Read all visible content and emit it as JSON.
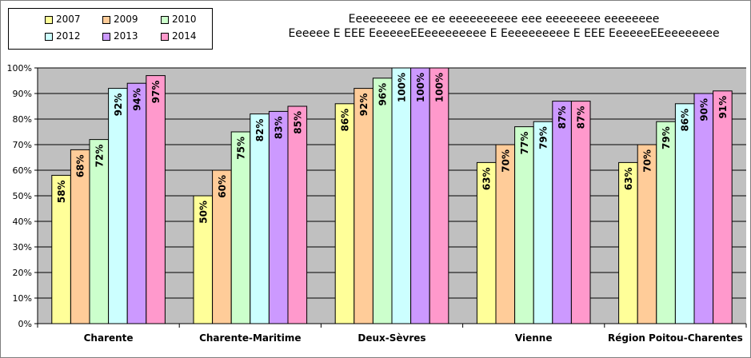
{
  "chart_data": {
    "type": "bar",
    "title_lines": [
      "Eeeeeeeee ee ee eeeeeeeeee eee eeeeeeee eeeeeeee",
      "Eeeeee E EEE EeeeeeEEeeeeeeeee E Eeeeeeeeee E EEE EeeeeeEEeeeeeeee"
    ],
    "categories": [
      "Charente",
      "Charente-Maritime",
      "Deux-Sèvres",
      "Vienne",
      "Région Poitou-Charentes"
    ],
    "series": [
      {
        "name": "2007",
        "color": "#ffff99",
        "values": [
          58,
          50,
          86,
          63,
          63
        ]
      },
      {
        "name": "2009",
        "color": "#ffcc99",
        "values": [
          68,
          60,
          92,
          70,
          70
        ]
      },
      {
        "name": "2010",
        "color": "#ccffcc",
        "values": [
          72,
          75,
          96,
          77,
          79
        ]
      },
      {
        "name": "2012",
        "color": "#ccffff",
        "values": [
          92,
          82,
          100,
          79,
          86
        ]
      },
      {
        "name": "2013",
        "color": "#cc99ff",
        "values": [
          94,
          83,
          100,
          87,
          90
        ]
      },
      {
        "name": "2014",
        "color": "#ff99cc",
        "values": [
          97,
          85,
          100,
          87,
          91
        ]
      }
    ],
    "ylim": [
      0,
      100
    ],
    "yticks": [
      "0%",
      "10%",
      "20%",
      "30%",
      "40%",
      "50%",
      "60%",
      "70%",
      "80%",
      "90%",
      "100%"
    ],
    "value_suffix": "%",
    "grid": true,
    "legend_position": "top-left",
    "plot_background": "#c0c0c0"
  }
}
